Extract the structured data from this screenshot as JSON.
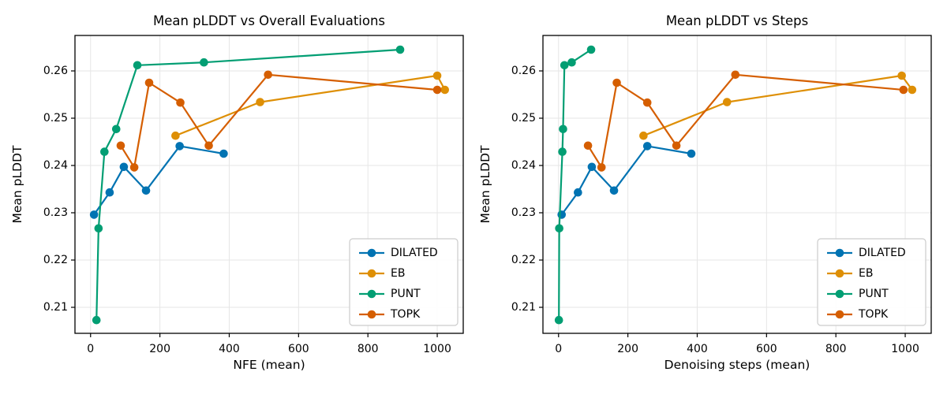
{
  "page": {
    "background": "#ffffff"
  },
  "palette": {
    "dilated_blue": "#0173b2",
    "eb_gold": "#de8f05",
    "punt_green": "#029e73",
    "topk_orange": "#d55e00",
    "grid_gray": "#e6e6e6",
    "legend_border": "#cccccc"
  },
  "chart_data": [
    {
      "type": "line",
      "title": "Mean pLDDT vs Overall Evaluations",
      "xlabel": "NFE (mean)",
      "ylabel": "Mean pLDDT",
      "xlim": [
        -45,
        1075
      ],
      "ylim": [
        0.2045,
        0.2675
      ],
      "xticks": [
        0,
        200,
        400,
        600,
        800,
        1000
      ],
      "xtick_labels": [
        "0",
        "200",
        "400",
        "600",
        "800",
        "1000"
      ],
      "yticks": [
        0.21,
        0.22,
        0.23,
        0.24,
        0.25,
        0.26
      ],
      "ytick_labels": [
        "0.21",
        "0.22",
        "0.23",
        "0.24",
        "0.25",
        "0.26"
      ],
      "grid": true,
      "legend_position": "lower right",
      "legend_entries": [
        "DILATED",
        "EB",
        "PUNT",
        "TOPK"
      ],
      "series": [
        {
          "name": "DILATED",
          "color": "#0173b2",
          "x": [
            10,
            55,
            96,
            160,
            257,
            384
          ],
          "y": [
            0.2296,
            0.2343,
            0.2397,
            0.2347,
            0.2441,
            0.2425
          ]
        },
        {
          "name": "EB",
          "color": "#de8f05",
          "x": [
            245,
            489,
            1000,
            1022
          ],
          "y": [
            0.2463,
            0.2534,
            0.259,
            0.256
          ]
        },
        {
          "name": "PUNT",
          "color": "#029e73",
          "x": [
            17,
            23,
            40,
            74,
            135,
            327,
            893
          ],
          "y": [
            0.2073,
            0.2267,
            0.2429,
            0.2477,
            0.2612,
            0.2618,
            0.2645
          ]
        },
        {
          "name": "TOPK",
          "color": "#d55e00",
          "x": [
            87,
            126,
            169,
            259,
            341,
            512,
            1000
          ],
          "y": [
            0.2442,
            0.2396,
            0.2575,
            0.2533,
            0.2442,
            0.2592,
            0.256
          ]
        }
      ]
    },
    {
      "type": "line",
      "title": "Mean pLDDT vs Steps",
      "xlabel": "Denoising steps (mean)",
      "ylabel": "Mean pLDDT",
      "xlim": [
        -45,
        1075
      ],
      "ylim": [
        0.2045,
        0.2675
      ],
      "xticks": [
        0,
        200,
        400,
        600,
        800,
        1000
      ],
      "xtick_labels": [
        "0",
        "200",
        "400",
        "600",
        "800",
        "1000"
      ],
      "yticks": [
        0.21,
        0.22,
        0.23,
        0.24,
        0.25,
        0.26
      ],
      "ytick_labels": [
        "0.21",
        "0.22",
        "0.23",
        "0.24",
        "0.25",
        "0.26"
      ],
      "grid": true,
      "legend_position": "lower right",
      "legend_entries": [
        "DILATED",
        "EB",
        "PUNT",
        "TOPK"
      ],
      "series": [
        {
          "name": "DILATED",
          "color": "#0173b2",
          "x": [
            9,
            56,
            96,
            160,
            256,
            383
          ],
          "y": [
            0.2296,
            0.2343,
            0.2397,
            0.2347,
            0.2441,
            0.2425
          ]
        },
        {
          "name": "EB",
          "color": "#de8f05",
          "x": [
            245,
            486,
            990,
            1020
          ],
          "y": [
            0.2463,
            0.2534,
            0.259,
            0.256
          ]
        },
        {
          "name": "PUNT",
          "color": "#029e73",
          "x": [
            1,
            2,
            11,
            13,
            17,
            38,
            94
          ],
          "y": [
            0.2073,
            0.2267,
            0.2429,
            0.2477,
            0.2612,
            0.2618,
            0.2645
          ]
        },
        {
          "name": "TOPK",
          "color": "#d55e00",
          "x": [
            85,
            124,
            168,
            256,
            340,
            510,
            995
          ],
          "y": [
            0.2442,
            0.2396,
            0.2575,
            0.2533,
            0.2442,
            0.2592,
            0.256
          ]
        }
      ]
    }
  ]
}
